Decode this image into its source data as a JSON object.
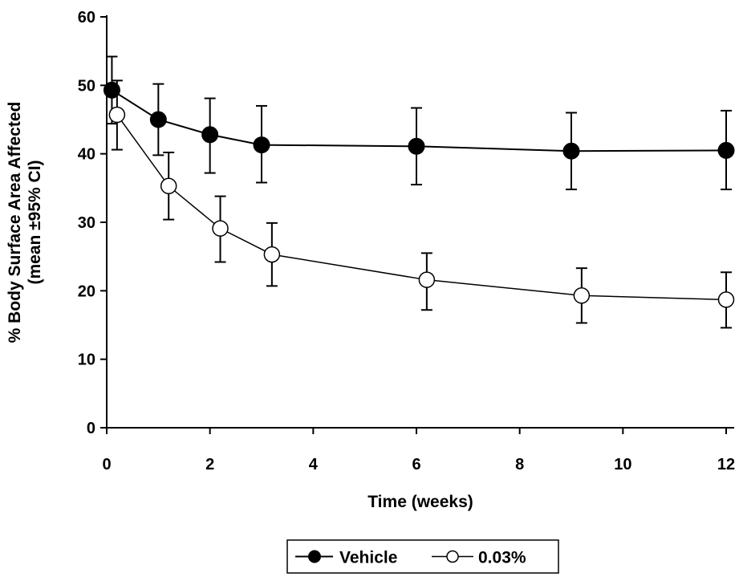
{
  "chart_data": {
    "type": "line",
    "xlabel": "Time (weeks)",
    "ylabel_line1": "% Body Surface Area Affected",
    "ylabel_line2": "(mean ±95% CI)",
    "xlim": [
      0,
      12
    ],
    "ylim": [
      0,
      60
    ],
    "xticks": [
      0,
      2,
      4,
      6,
      8,
      10,
      12
    ],
    "yticks": [
      0,
      10,
      20,
      30,
      40,
      50,
      60
    ],
    "grid": false,
    "legend_position": "bottom-center",
    "series": [
      {
        "name": "Vehicle",
        "marker": "filled-circle",
        "color": "#000000",
        "points": [
          {
            "x": 0.1,
            "y": 49.3,
            "lo": 44.4,
            "hi": 54.2
          },
          {
            "x": 1.0,
            "y": 45.0,
            "lo": 39.8,
            "hi": 50.2
          },
          {
            "x": 2.0,
            "y": 42.8,
            "lo": 37.2,
            "hi": 48.1
          },
          {
            "x": 3.0,
            "y": 41.3,
            "lo": 35.8,
            "hi": 47.0
          },
          {
            "x": 6.0,
            "y": 41.1,
            "lo": 35.5,
            "hi": 46.7
          },
          {
            "x": 9.0,
            "y": 40.4,
            "lo": 34.8,
            "hi": 46.0
          },
          {
            "x": 12.0,
            "y": 40.5,
            "lo": 34.8,
            "hi": 46.3
          }
        ]
      },
      {
        "name": "0.03%",
        "marker": "open-circle",
        "color": "#000000",
        "points": [
          {
            "x": 0.2,
            "y": 45.7,
            "lo": 40.6,
            "hi": 50.7
          },
          {
            "x": 1.2,
            "y": 35.3,
            "lo": 30.4,
            "hi": 40.2
          },
          {
            "x": 2.2,
            "y": 29.1,
            "lo": 24.2,
            "hi": 33.8
          },
          {
            "x": 3.2,
            "y": 25.3,
            "lo": 20.7,
            "hi": 29.9
          },
          {
            "x": 6.2,
            "y": 21.6,
            "lo": 17.2,
            "hi": 25.5
          },
          {
            "x": 9.2,
            "y": 19.3,
            "lo": 15.3,
            "hi": 23.3
          },
          {
            "x": 12.0,
            "y": 18.7,
            "lo": 14.6,
            "hi": 22.7
          }
        ]
      }
    ]
  }
}
